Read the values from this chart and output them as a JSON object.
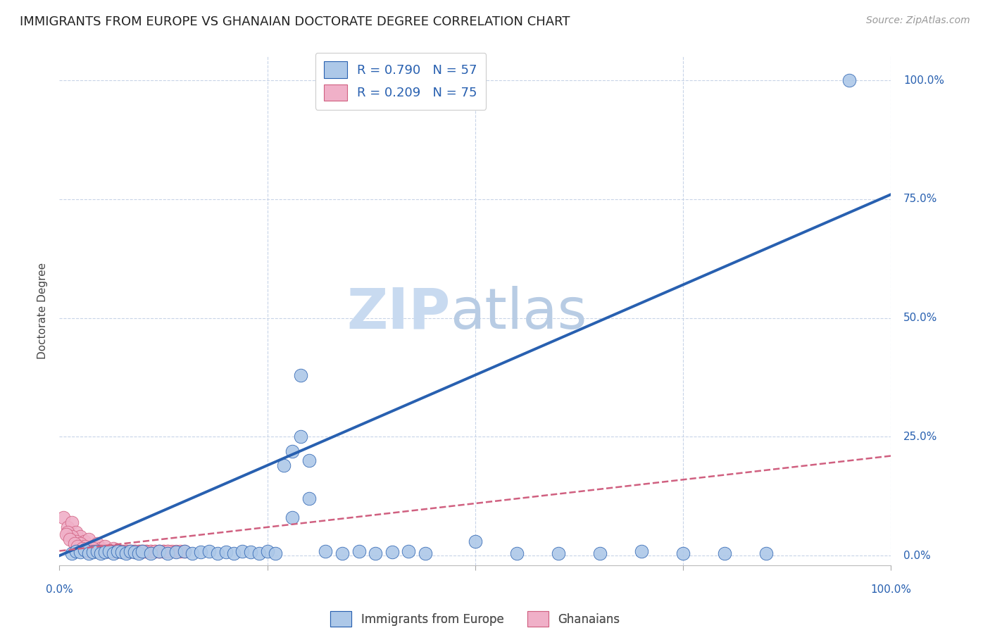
{
  "title": "IMMIGRANTS FROM EUROPE VS GHANAIAN DOCTORATE DEGREE CORRELATION CHART",
  "source": "Source: ZipAtlas.com",
  "ylabel": "Doctorate Degree",
  "ytick_values": [
    0,
    25,
    50,
    75,
    100
  ],
  "xlim": [
    0,
    100
  ],
  "ylim": [
    -2,
    105
  ],
  "legend_blue_label": "R = 0.790   N = 57",
  "legend_pink_label": "R = 0.209   N = 75",
  "legend_bottom_blue": "Immigrants from Europe",
  "legend_bottom_pink": "Ghanaians",
  "blue_color": "#adc8e8",
  "blue_line_color": "#2860b0",
  "pink_color": "#f0b0c8",
  "pink_line_color": "#d06080",
  "blue_scatter_x": [
    1.5,
    2.0,
    2.5,
    3.0,
    3.5,
    4.0,
    4.5,
    5.0,
    5.5,
    6.0,
    6.5,
    7.0,
    7.5,
    8.0,
    8.5,
    9.0,
    9.5,
    10.0,
    11.0,
    12.0,
    13.0,
    14.0,
    15.0,
    16.0,
    17.0,
    18.0,
    19.0,
    20.0,
    21.0,
    22.0,
    23.0,
    24.0,
    25.0,
    26.0,
    27.0,
    28.0,
    29.0,
    30.0,
    32.0,
    34.0,
    36.0,
    38.0,
    40.0,
    42.0,
    44.0,
    50.0,
    55.0,
    60.0,
    65.0,
    70.0,
    75.0,
    80.0,
    85.0,
    28.0,
    29.0,
    30.0,
    95.0
  ],
  "blue_scatter_y": [
    0.5,
    1.0,
    0.8,
    1.2,
    0.5,
    0.8,
    1.0,
    0.5,
    0.8,
    1.0,
    0.5,
    1.0,
    0.8,
    0.5,
    1.0,
    0.8,
    0.5,
    1.0,
    0.5,
    1.0,
    0.5,
    0.8,
    1.0,
    0.5,
    0.8,
    1.0,
    0.5,
    0.8,
    0.5,
    1.0,
    0.8,
    0.5,
    1.0,
    0.5,
    19.0,
    22.0,
    25.0,
    20.0,
    1.0,
    0.5,
    1.0,
    0.5,
    0.8,
    1.0,
    0.5,
    3.0,
    0.5,
    0.5,
    0.5,
    1.0,
    0.5,
    0.5,
    0.5,
    8.0,
    38.0,
    12.0,
    100.0
  ],
  "pink_scatter_x": [
    0.5,
    1.0,
    1.5,
    2.0,
    2.5,
    3.0,
    3.5,
    4.0,
    4.5,
    5.0,
    5.5,
    6.0,
    6.5,
    7.0,
    7.5,
    8.0,
    8.5,
    9.0,
    9.5,
    10.0,
    10.5,
    11.0,
    11.5,
    12.0,
    12.5,
    13.0,
    13.5,
    14.0,
    14.5,
    15.0,
    1.0,
    1.5,
    2.0,
    2.5,
    3.0,
    3.5,
    4.0,
    4.5,
    5.0,
    5.5,
    6.0,
    6.5,
    7.0,
    7.5,
    8.0,
    8.5,
    9.0,
    9.5,
    10.0,
    10.5,
    11.0,
    11.5,
    12.0,
    12.5,
    13.0,
    0.8,
    1.2,
    1.8,
    2.2,
    2.8,
    3.2,
    3.8,
    4.2,
    4.8,
    5.2,
    5.8,
    6.2,
    6.8,
    7.2,
    7.8,
    8.2,
    8.8,
    9.2,
    9.8,
    10.2
  ],
  "pink_scatter_y": [
    8.0,
    6.0,
    7.0,
    5.0,
    4.0,
    3.0,
    3.5,
    2.0,
    2.5,
    1.5,
    2.0,
    1.0,
    1.5,
    1.0,
    1.0,
    1.0,
    1.0,
    1.0,
    1.0,
    1.0,
    1.0,
    1.0,
    1.0,
    1.0,
    1.0,
    1.0,
    1.0,
    1.0,
    1.0,
    1.0,
    5.0,
    4.0,
    3.0,
    2.5,
    2.0,
    1.5,
    1.5,
    1.0,
    1.0,
    1.0,
    1.0,
    1.0,
    1.0,
    1.0,
    1.0,
    1.0,
    1.0,
    1.0,
    1.0,
    1.0,
    1.0,
    1.0,
    1.0,
    1.0,
    1.0,
    4.5,
    3.5,
    2.5,
    2.0,
    1.5,
    1.0,
    1.0,
    1.0,
    1.0,
    1.0,
    1.0,
    1.0,
    1.0,
    1.0,
    1.0,
    1.0,
    1.0,
    1.0,
    1.0,
    1.0
  ],
  "blue_line_x": [
    0,
    100
  ],
  "blue_line_y": [
    0,
    76
  ],
  "pink_line_x": [
    0,
    100
  ],
  "pink_line_y": [
    1,
    21
  ],
  "grid_color": "#c8d4e8",
  "background_color": "#ffffff",
  "title_fontsize": 13,
  "axis_label_fontsize": 11,
  "tick_fontsize": 11,
  "source_fontsize": 10
}
